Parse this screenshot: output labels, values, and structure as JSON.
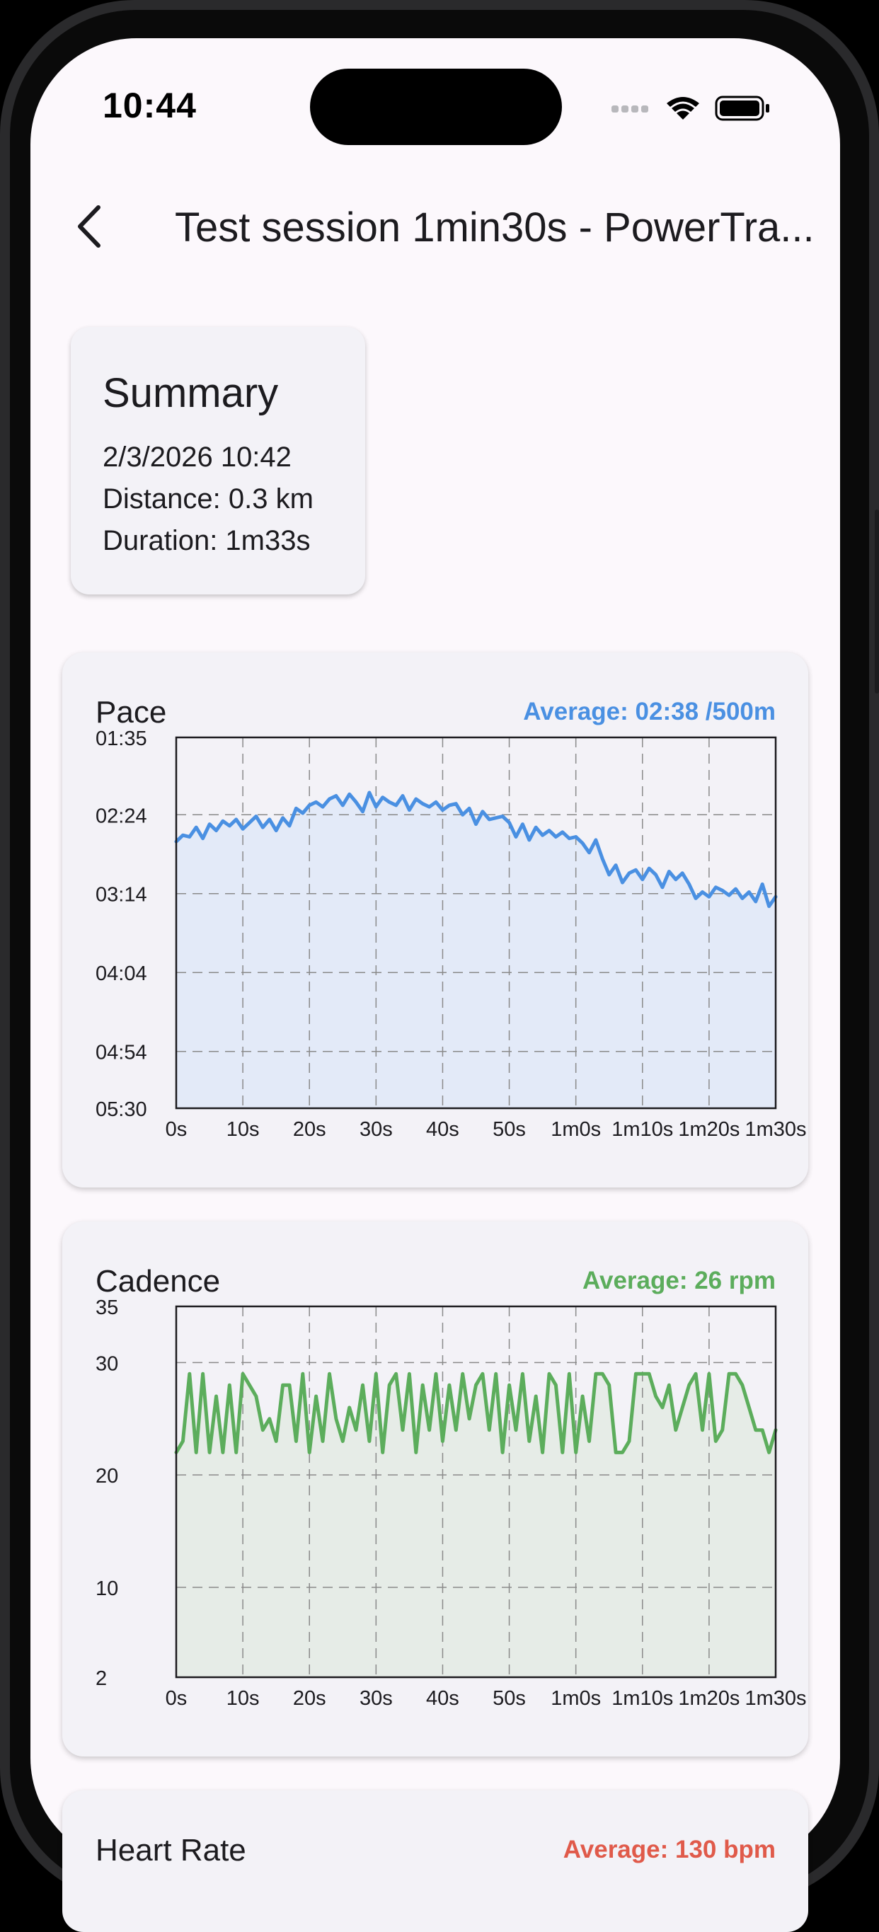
{
  "status_bar": {
    "time": "10:44"
  },
  "header": {
    "title": "Test session 1min30s - PowerTra..."
  },
  "summary": {
    "title": "Summary",
    "date": "2/3/2026 10:42",
    "distance": "Distance: 0.3 km",
    "duration": "Duration: 1m33s"
  },
  "colors": {
    "pace": "#4a90e2",
    "cadence": "#5cad5c",
    "heart_rate": "#e05a4a"
  },
  "chart_data": [
    {
      "type": "area",
      "title": "Pace",
      "average_label": "Average: 02:38 /500m",
      "x_unit": "seconds",
      "y_unit": "seconds per 500m",
      "y_inverted": true,
      "ylim": [
        95,
        330
      ],
      "xlim": [
        0,
        90
      ],
      "y_ticks": [
        95,
        144,
        194,
        244,
        294,
        330
      ],
      "y_tick_labels": [
        "01:35",
        "02:24",
        "03:14",
        "04:04",
        "04:54",
        "05:30"
      ],
      "x_ticks": [
        0,
        10,
        20,
        30,
        40,
        50,
        60,
        70,
        80,
        90
      ],
      "x_tick_labels": [
        "0s",
        "10s",
        "20s",
        "30s",
        "40s",
        "50s",
        "1m0s",
        "1m10s",
        "1m20s",
        "1m30s"
      ],
      "grid": true,
      "x": [
        0,
        1,
        2,
        3,
        4,
        5,
        6,
        7,
        8,
        9,
        10,
        11,
        12,
        13,
        14,
        15,
        16,
        17,
        18,
        19,
        20,
        21,
        22,
        23,
        24,
        25,
        26,
        27,
        28,
        29,
        30,
        31,
        32,
        33,
        34,
        35,
        36,
        37,
        38,
        39,
        40,
        41,
        42,
        43,
        44,
        45,
        46,
        47,
        48,
        49,
        50,
        51,
        52,
        53,
        54,
        55,
        56,
        57,
        58,
        59,
        60,
        61,
        62,
        63,
        64,
        65,
        66,
        67,
        68,
        69,
        70,
        71,
        72,
        73,
        74,
        75,
        76,
        77,
        78,
        79,
        80,
        81,
        82,
        83,
        84,
        85,
        86,
        87,
        88,
        89,
        90
      ],
      "y": [
        161,
        157,
        158,
        152,
        159,
        150,
        154,
        148,
        151,
        147,
        153,
        149,
        145,
        152,
        147,
        154,
        146,
        151,
        140,
        143,
        138,
        136,
        139,
        134,
        132,
        138,
        131,
        136,
        142,
        130,
        139,
        133,
        136,
        138,
        132,
        141,
        134,
        137,
        139,
        136,
        141,
        138,
        137,
        144,
        140,
        150,
        142,
        147,
        146,
        145,
        149,
        158,
        150,
        160,
        152,
        157,
        154,
        158,
        155,
        159,
        158,
        162,
        168,
        160,
        172,
        182,
        176,
        187,
        181,
        179,
        185,
        178,
        182,
        190,
        180,
        185,
        181,
        188,
        197,
        193,
        196,
        190,
        192,
        195,
        191,
        197,
        193,
        199,
        188,
        202,
        196
      ]
    },
    {
      "type": "area",
      "title": "Cadence",
      "average_label": "Average: 26 rpm",
      "y_unit": "rpm",
      "ylim": [
        2,
        35
      ],
      "xlim": [
        0,
        90
      ],
      "y_ticks": [
        2,
        10,
        20,
        30,
        35
      ],
      "y_tick_labels": [
        "2",
        "10",
        "20",
        "30",
        "35"
      ],
      "x_ticks": [
        0,
        10,
        20,
        30,
        40,
        50,
        60,
        70,
        80,
        90
      ],
      "x_tick_labels": [
        "0s",
        "10s",
        "20s",
        "30s",
        "40s",
        "50s",
        "1m0s",
        "1m10s",
        "1m20s",
        "1m30s"
      ],
      "grid": true,
      "x": [
        0,
        1,
        2,
        3,
        4,
        5,
        6,
        7,
        8,
        9,
        10,
        11,
        12,
        13,
        14,
        15,
        16,
        17,
        18,
        19,
        20,
        21,
        22,
        23,
        24,
        25,
        26,
        27,
        28,
        29,
        30,
        31,
        32,
        33,
        34,
        35,
        36,
        37,
        38,
        39,
        40,
        41,
        42,
        43,
        44,
        45,
        46,
        47,
        48,
        49,
        50,
        51,
        52,
        53,
        54,
        55,
        56,
        57,
        58,
        59,
        60,
        61,
        62,
        63,
        64,
        65,
        66,
        67,
        68,
        69,
        70,
        71,
        72,
        73,
        74,
        75,
        76,
        77,
        78,
        79,
        80,
        81,
        82,
        83,
        84,
        85,
        86,
        87,
        88,
        89,
        90
      ],
      "y": [
        22,
        23,
        29,
        22,
        29,
        22,
        27,
        22,
        28,
        22,
        29,
        28,
        27,
        24,
        25,
        23,
        28,
        28,
        23,
        29,
        22,
        27,
        23,
        29,
        25,
        23,
        26,
        24,
        28,
        23,
        29,
        22,
        28,
        29,
        24,
        29,
        22,
        28,
        24,
        29,
        23,
        28,
        24,
        29,
        25,
        28,
        29,
        24,
        29,
        22,
        28,
        24,
        29,
        23,
        27,
        22,
        29,
        28,
        22,
        29,
        22,
        27,
        23,
        29,
        29,
        28,
        22,
        22,
        23,
        29,
        29,
        29,
        27,
        26,
        28,
        24,
        26,
        28,
        29,
        24,
        29,
        23,
        24,
        29,
        29,
        28,
        26,
        24,
        24,
        22,
        24
      ]
    },
    {
      "type": "area",
      "title": "Heart Rate",
      "average_label": "Average: 130 bpm"
    }
  ]
}
